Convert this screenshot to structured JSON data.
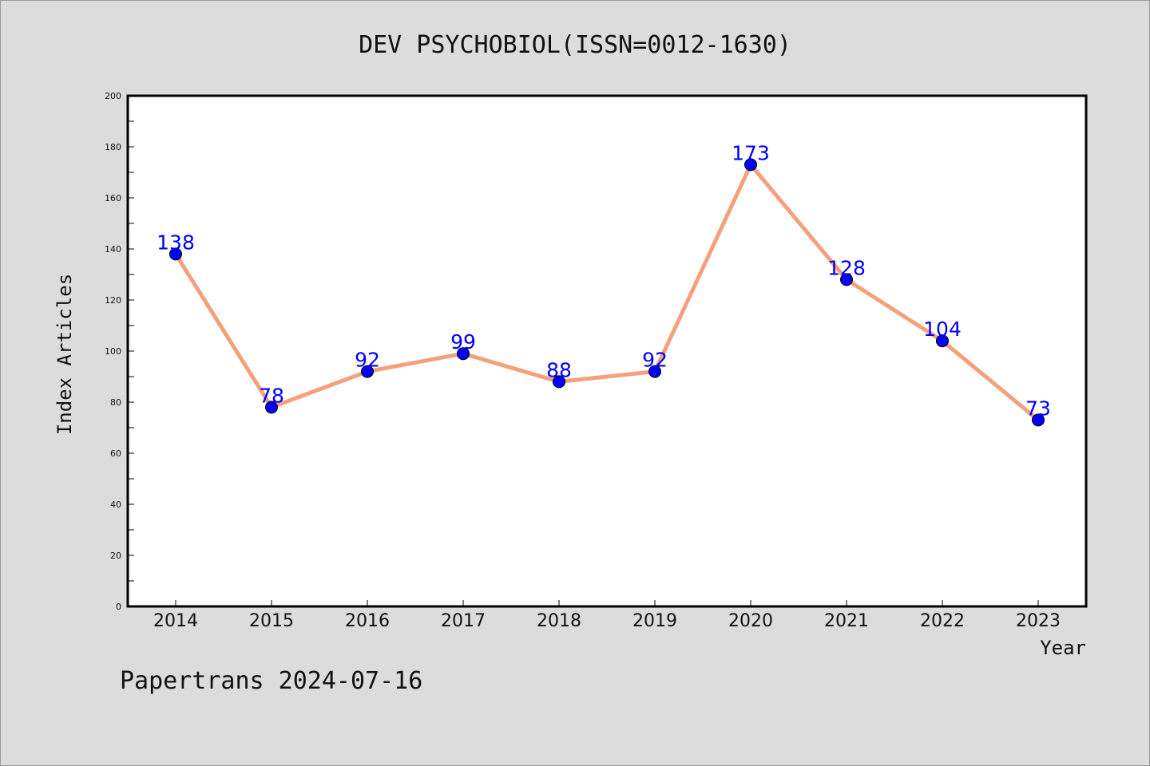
{
  "chart_data": {
    "type": "line",
    "title": "DEV PSYCHOBIOL(ISSN=0012-1630)",
    "xlabel": "Year",
    "ylabel": "Index Articles",
    "categories": [
      "2014",
      "2015",
      "2016",
      "2017",
      "2018",
      "2019",
      "2020",
      "2021",
      "2022",
      "2023"
    ],
    "values": [
      138,
      78,
      92,
      99,
      88,
      92,
      173,
      128,
      104,
      73
    ],
    "ylim": [
      0,
      200
    ],
    "yticks": [
      0,
      20,
      40,
      60,
      80,
      100,
      120,
      140,
      160,
      180,
      200
    ],
    "grid": false,
    "legend": "none",
    "line_color": "#f4a07c",
    "marker_color": "#0000ff",
    "label_color": "#0000ff"
  },
  "footer": "Papertrans 2024-07-16"
}
